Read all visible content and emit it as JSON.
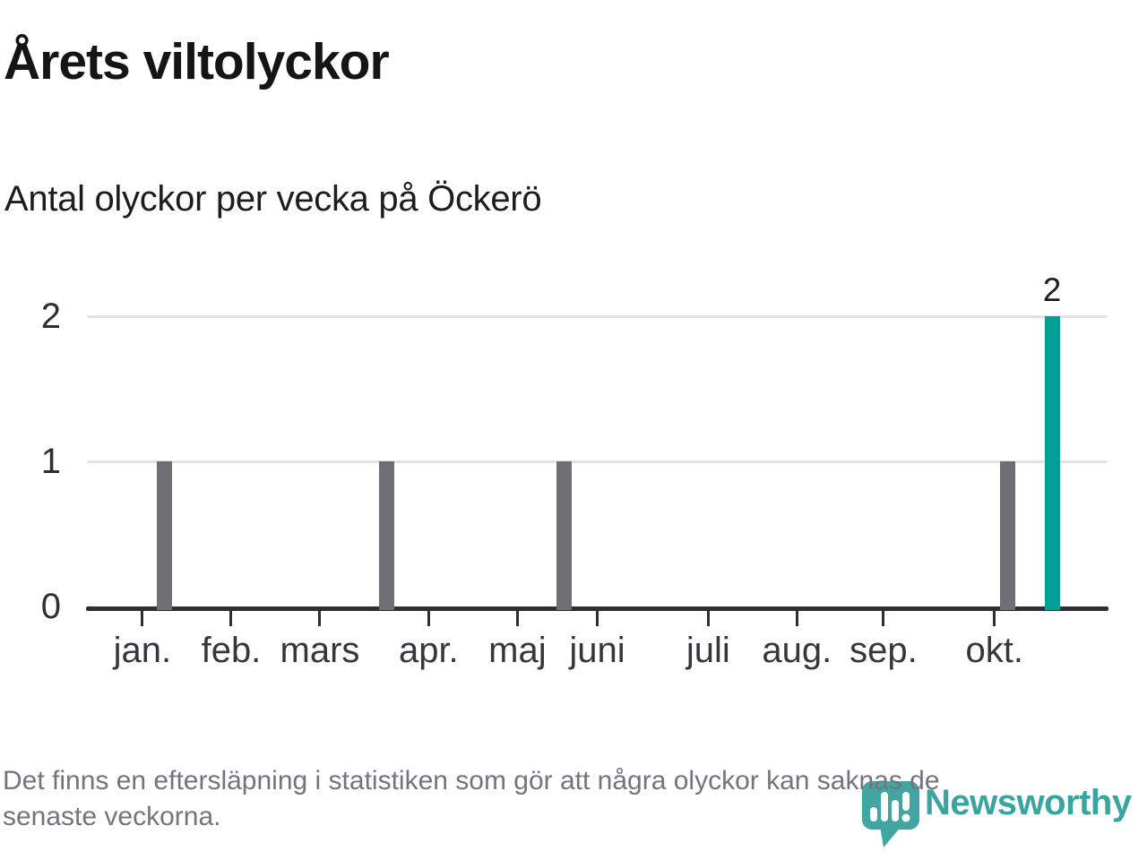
{
  "header": {
    "title": "Årets viltolyckor",
    "subtitle": "Antal olyckor per vecka på Öckerö"
  },
  "chart_data": {
    "type": "bar",
    "title": "Årets viltolyckor",
    "subtitle": "Antal olyckor per vecka på Öckerö",
    "x_unit": "vecka",
    "total_weeks": 46,
    "months": [
      {
        "label": "jan.",
        "week_pos": 2.5
      },
      {
        "label": "feb.",
        "week_pos": 6.5
      },
      {
        "label": "mars",
        "week_pos": 10.5
      },
      {
        "label": "apr.",
        "week_pos": 15.4
      },
      {
        "label": "maj",
        "week_pos": 19.4
      },
      {
        "label": "juni",
        "week_pos": 23.0
      },
      {
        "label": "juli",
        "week_pos": 28.0
      },
      {
        "label": "aug.",
        "week_pos": 32.0
      },
      {
        "label": "sep.",
        "week_pos": 35.9
      },
      {
        "label": "okt.",
        "week_pos": 40.9
      }
    ],
    "bars": [
      {
        "week_index": 3,
        "value": 1,
        "highlight": false,
        "label": ""
      },
      {
        "week_index": 13,
        "value": 1,
        "highlight": false,
        "label": ""
      },
      {
        "week_index": 21,
        "value": 1,
        "highlight": false,
        "label": ""
      },
      {
        "week_index": 41,
        "value": 1,
        "highlight": false,
        "label": ""
      },
      {
        "week_index": 43,
        "value": 2,
        "highlight": true,
        "label": "2"
      }
    ],
    "yticks": [
      0,
      1,
      2
    ],
    "ylim": [
      0,
      2
    ],
    "grid": "horizontal",
    "legend": "none",
    "colors": {
      "bar": "#6e6e74",
      "highlight": "#00a099",
      "gridline": "#e3e3e3",
      "axis": "#2e2e33",
      "value_label": "#1d1d1f"
    }
  },
  "footer": {
    "lines": [
      "Det finns en eftersläpning i statistiken som gör att några olyckor kan saknas de",
      "senaste veckorna."
    ]
  },
  "logo": {
    "brand": "Newsworthy",
    "icon_color": "#41a6a1",
    "text_color": "#3aa49e"
  }
}
